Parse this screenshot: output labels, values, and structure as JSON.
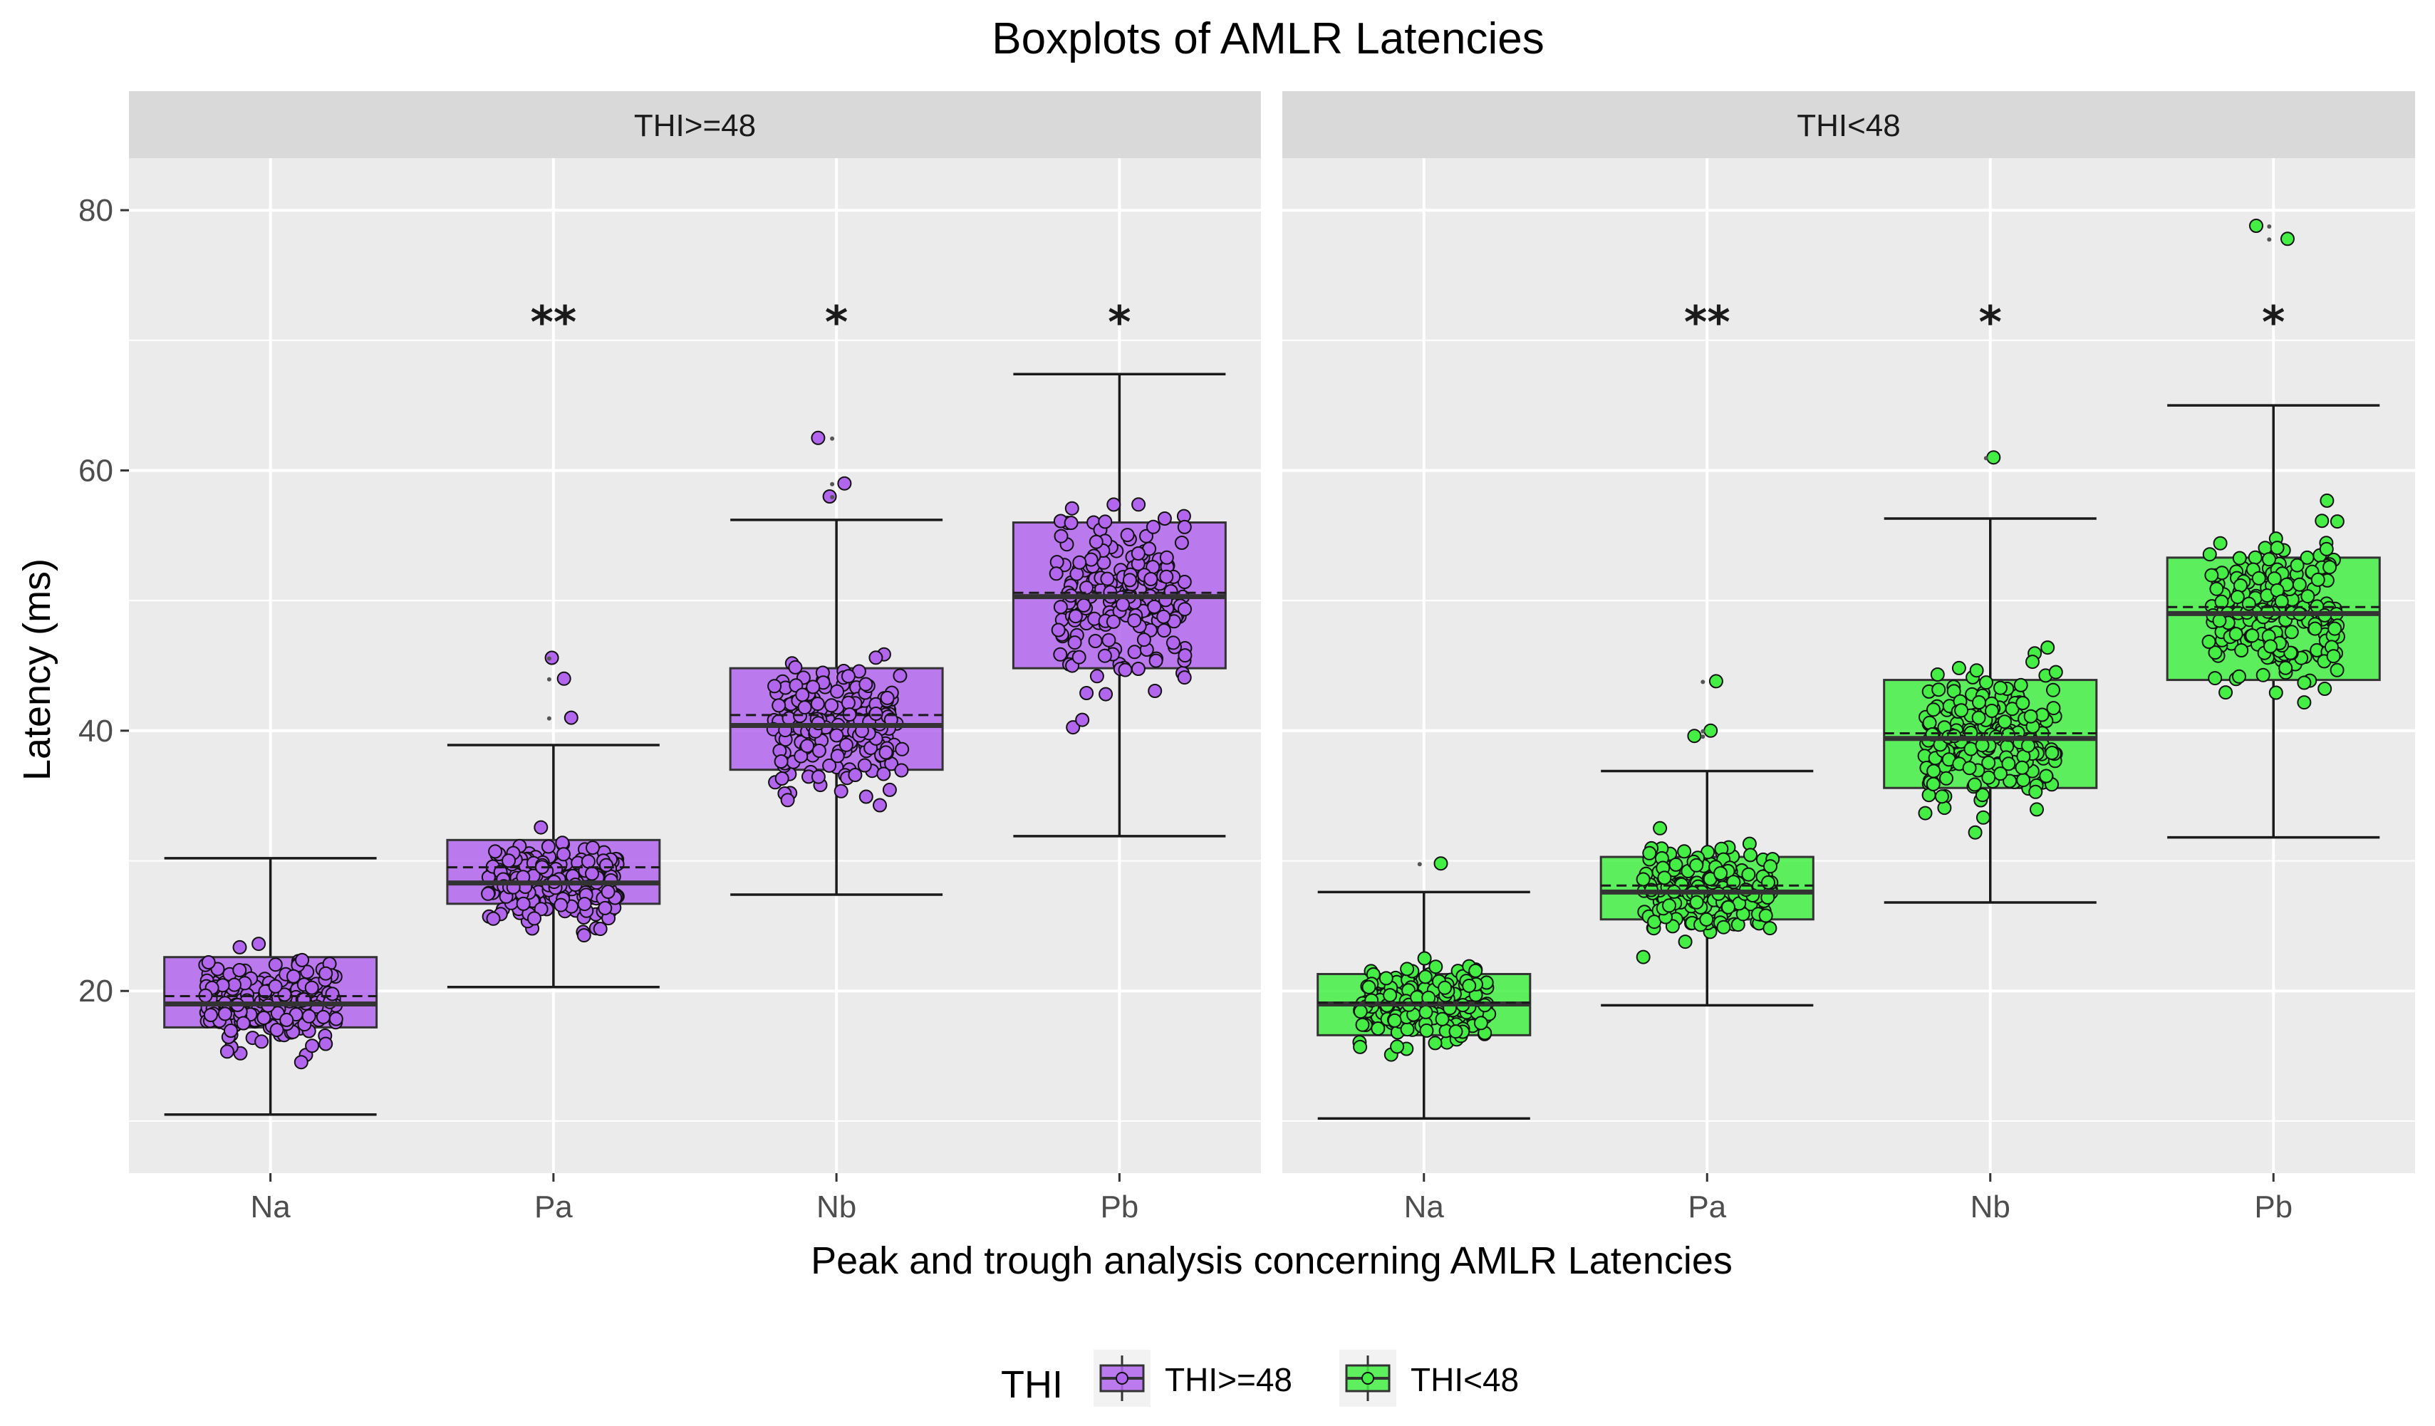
{
  "chart_data": {
    "type": "boxplot",
    "title": "Boxplots of AMLR Latencies",
    "xlabel": "Peak and trough analysis concerning AMLR Latencies",
    "ylabel": "Latency (ms)",
    "ylim": [
      6,
      84
    ],
    "yticks": [
      20,
      40,
      60,
      80
    ],
    "categories": [
      "Na",
      "Pa",
      "Nb",
      "Pb"
    ],
    "legend": {
      "title": "THI",
      "position": "bottom",
      "entries": [
        "THI>=48",
        "THI<48"
      ]
    },
    "colors": {
      "THI>=48": "#b266ee",
      "THI<48": "#44ee44"
    },
    "facets": [
      {
        "label": "THI>=48",
        "group": "THI>=48",
        "boxes": [
          {
            "category": "Na",
            "min": 10.5,
            "q1": 17.2,
            "median": 19.0,
            "mean": 19.6,
            "q3": 22.6,
            "max": 30.2,
            "outliers": [],
            "sig": ""
          },
          {
            "category": "Pa",
            "min": 20.3,
            "q1": 26.7,
            "median": 28.3,
            "mean": 29.5,
            "q3": 31.6,
            "max": 38.9,
            "outliers": [
              45.6,
              44.0,
              41.0
            ],
            "sig": "**"
          },
          {
            "category": "Nb",
            "min": 27.4,
            "q1": 37.0,
            "median": 40.4,
            "mean": 41.2,
            "q3": 44.8,
            "max": 56.2,
            "outliers": [
              62.5,
              59.0,
              58.0
            ],
            "sig": "*"
          },
          {
            "category": "Pb",
            "min": 31.9,
            "q1": 44.8,
            "median": 50.3,
            "mean": 50.6,
            "q3": 56.0,
            "max": 67.4,
            "outliers": [],
            "sig": "*"
          }
        ]
      },
      {
        "label": "THI<48",
        "group": "THI<48",
        "boxes": [
          {
            "category": "Na",
            "min": 10.2,
            "q1": 16.6,
            "median": 19.0,
            "mean": 19.1,
            "q3": 21.3,
            "max": 27.6,
            "outliers": [
              29.8
            ],
            "sig": ""
          },
          {
            "category": "Pa",
            "min": 18.9,
            "q1": 25.5,
            "median": 27.6,
            "mean": 28.1,
            "q3": 30.3,
            "max": 36.9,
            "outliers": [
              43.8,
              40.0,
              39.6
            ],
            "sig": "**"
          },
          {
            "category": "Nb",
            "min": 26.8,
            "q1": 35.6,
            "median": 39.4,
            "mean": 39.8,
            "q3": 43.9,
            "max": 56.3,
            "outliers": [
              61.0
            ],
            "sig": "*"
          },
          {
            "category": "Pb",
            "min": 31.8,
            "q1": 43.9,
            "median": 49.0,
            "mean": 49.5,
            "q3": 53.3,
            "max": 65.0,
            "outliers": [
              78.8,
              77.8
            ],
            "sig": "*"
          }
        ]
      }
    ]
  }
}
